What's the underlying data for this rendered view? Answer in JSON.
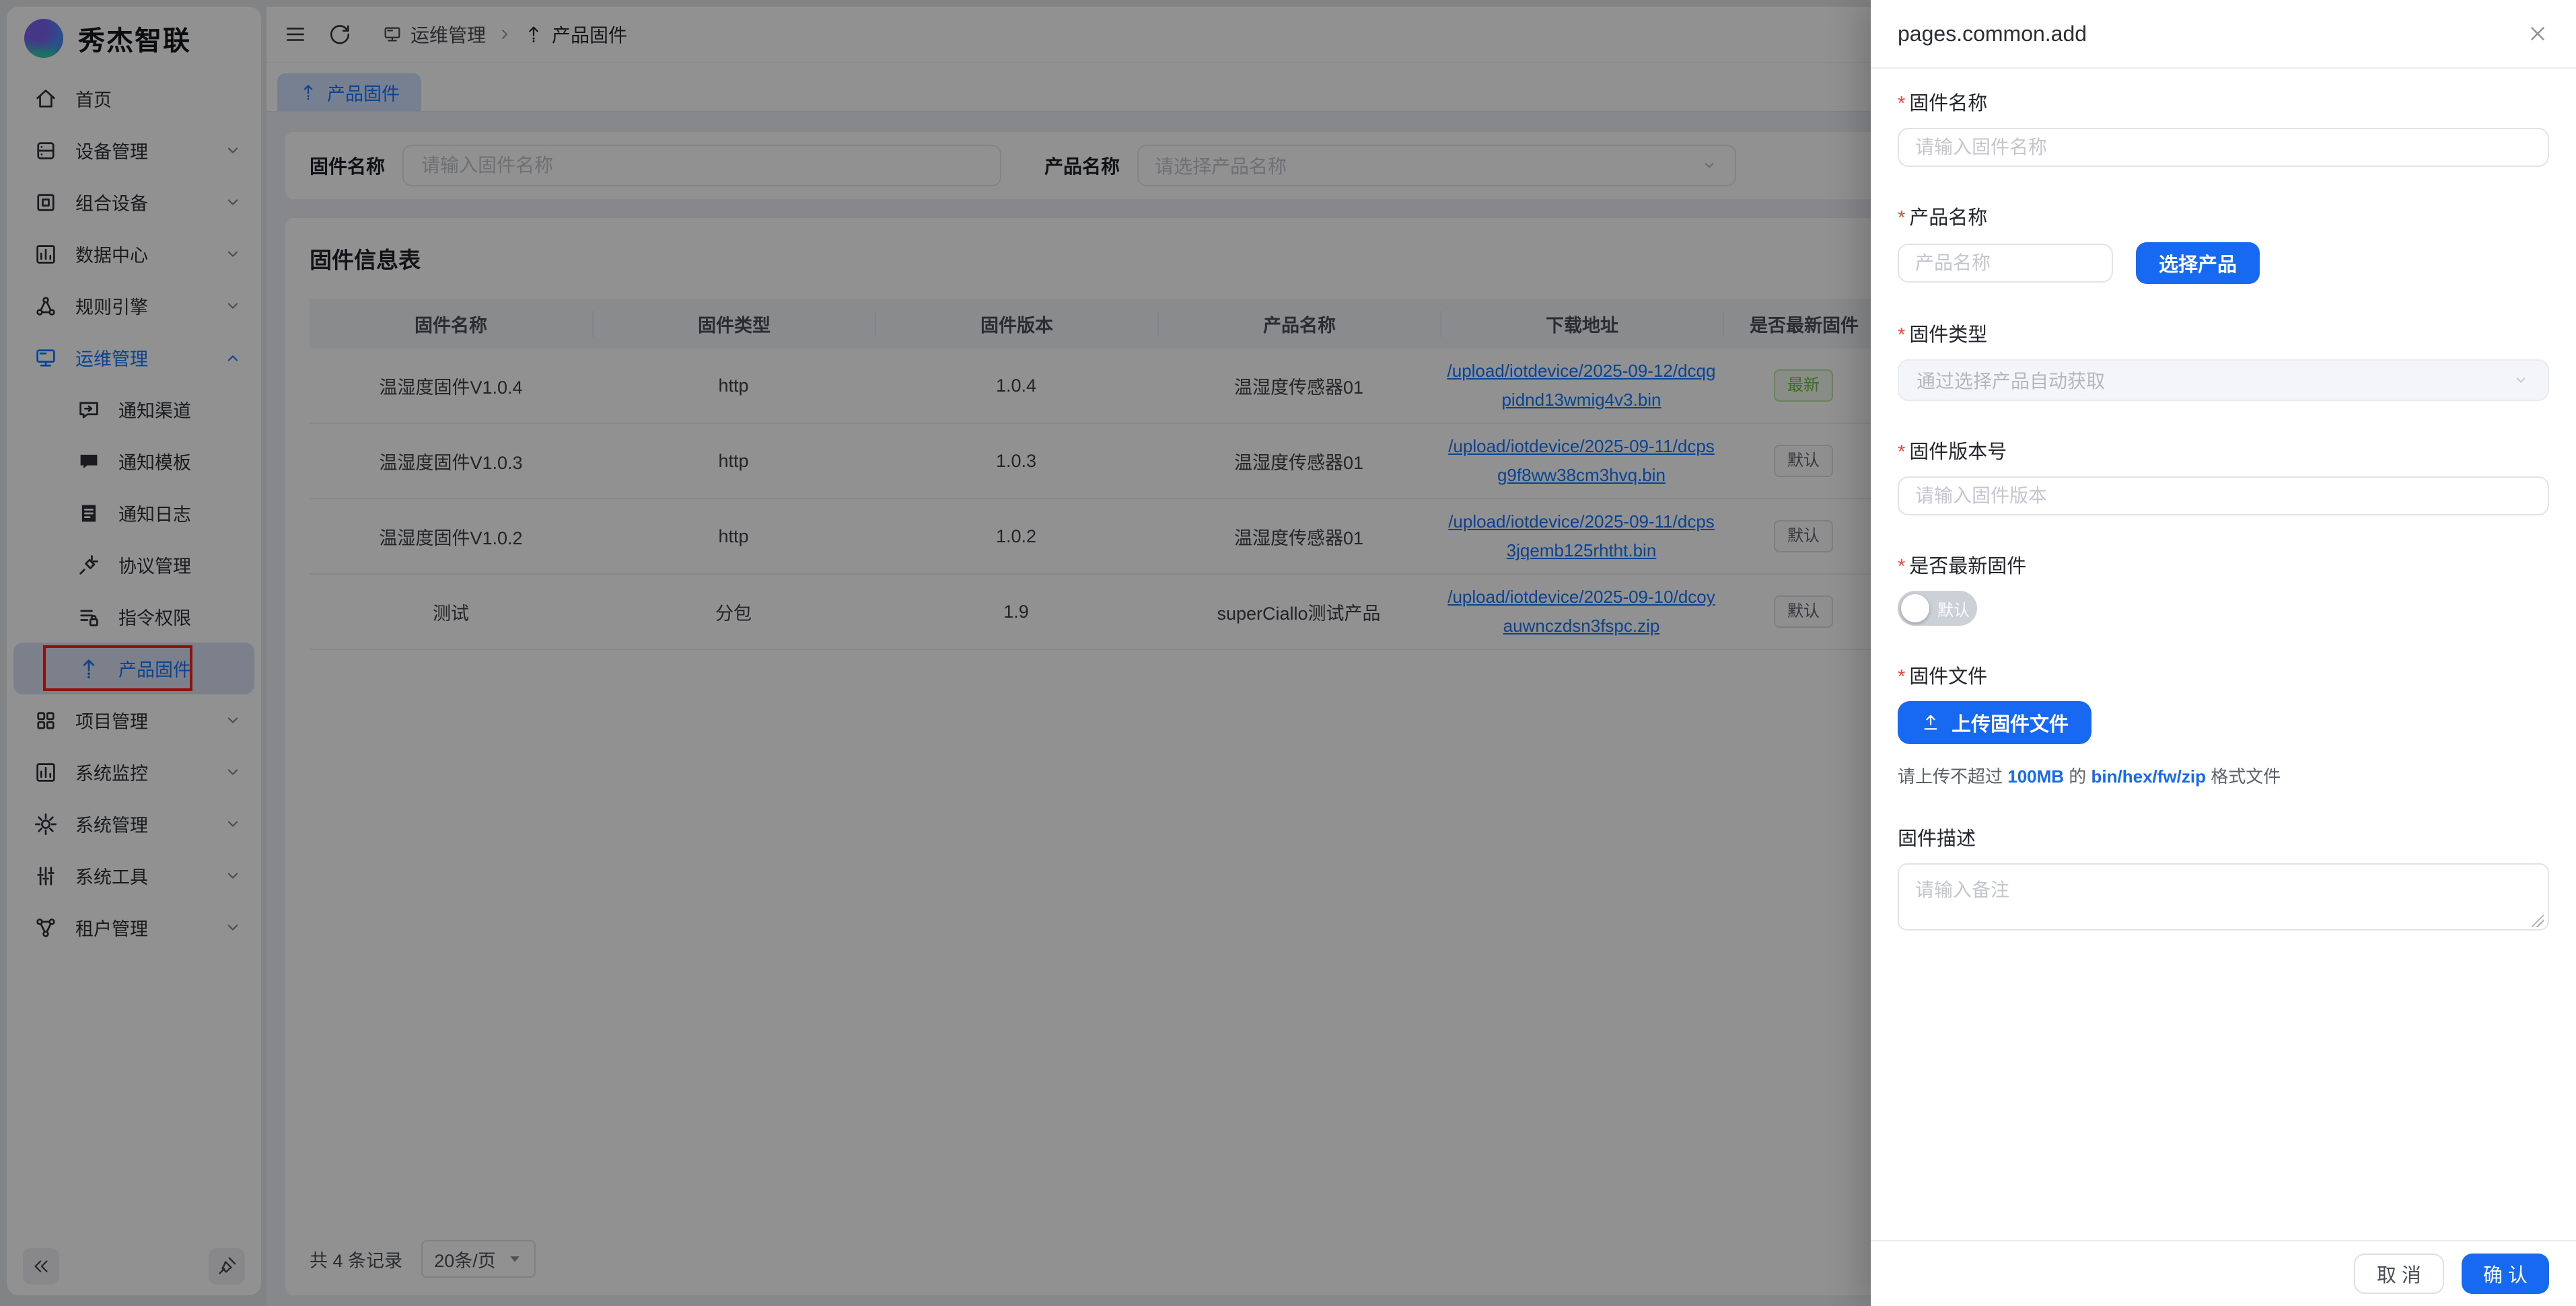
{
  "brand": {
    "name": "秀杰智联",
    "logo_icon": "brand-logo-icon"
  },
  "sidebar": {
    "menu": [
      {
        "key": "home",
        "label": "首页",
        "icon": "home-icon",
        "level": 1
      },
      {
        "key": "device-management",
        "label": "设备管理",
        "icon": "device-icon",
        "level": 1,
        "chevron": "down"
      },
      {
        "key": "composite-device",
        "label": "组合设备",
        "icon": "combo-icon",
        "level": 1,
        "chevron": "down"
      },
      {
        "key": "data-center",
        "label": "数据中心",
        "icon": "bar-chart-icon",
        "level": 1,
        "chevron": "down"
      },
      {
        "key": "rule-engine",
        "label": "规则引擎",
        "icon": "nodes-icon",
        "level": 1,
        "chevron": "down"
      },
      {
        "key": "ops-management",
        "label": "运维管理",
        "icon": "monitor-icon",
        "level": 1,
        "chevron": "up",
        "expanded": true
      },
      {
        "key": "notify-channel",
        "label": "通知渠道",
        "icon": "message-arrow-icon",
        "level": 2
      },
      {
        "key": "notify-template",
        "label": "通知模板",
        "icon": "message-icon",
        "level": 2
      },
      {
        "key": "notify-log",
        "label": "通知日志",
        "icon": "document-icon",
        "level": 2
      },
      {
        "key": "protocol-management",
        "label": "协议管理",
        "icon": "plug-icon",
        "level": 2
      },
      {
        "key": "command-permission",
        "label": "指令权限",
        "icon": "list-lock-icon",
        "level": 2
      },
      {
        "key": "product-firmware",
        "label": "产品固件",
        "icon": "upload-icon",
        "level": 2,
        "active": true,
        "annotated": true
      },
      {
        "key": "project-management",
        "label": "项目管理",
        "icon": "grid-icon",
        "level": 1,
        "chevron": "down"
      },
      {
        "key": "system-monitor",
        "label": "系统监控",
        "icon": "bar-chart-icon",
        "level": 1,
        "chevron": "down"
      },
      {
        "key": "system-management",
        "label": "系统管理",
        "icon": "gear-icon",
        "level": 1,
        "chevron": "down"
      },
      {
        "key": "system-tools",
        "label": "系统工具",
        "icon": "sliders-icon",
        "level": 1,
        "chevron": "down"
      },
      {
        "key": "tenant-management",
        "label": "租户管理",
        "icon": "org-icon",
        "level": 1,
        "chevron": "down"
      }
    ],
    "footer": {
      "collapse_icon": "collapse-icon",
      "pin_icon": "pin-icon"
    }
  },
  "topbar": {
    "menu_icon": "hamburger-icon",
    "refresh_icon": "refresh-icon",
    "breadcrumb": [
      {
        "label": "运维管理",
        "icon": "monitor-icon"
      },
      {
        "label": "产品固件",
        "icon": "upload-icon"
      }
    ]
  },
  "tabs": [
    {
      "label": "产品固件",
      "icon": "upload-icon",
      "active": true
    }
  ],
  "filters": {
    "firmware_name": {
      "label": "固件名称",
      "placeholder": "请输入固件名称"
    },
    "product_name": {
      "label": "产品名称",
      "placeholder": "请选择产品名称"
    }
  },
  "table": {
    "title": "固件信息表",
    "columns": [
      "固件名称",
      "固件类型",
      "固件版本",
      "产品名称",
      "下载地址",
      "是否最新固件"
    ],
    "rows": [
      {
        "name": "温湿度固件V1.0.4",
        "type": "http",
        "version": "1.0.4",
        "product": "温湿度传感器01",
        "download_url": "/upload/iotdevice/2025-09-12/dcqgpidnd13wmig4v3.bin",
        "latest_badge": "最新",
        "badge_style": "green"
      },
      {
        "name": "温湿度固件V1.0.3",
        "type": "http",
        "version": "1.0.3",
        "product": "温湿度传感器01",
        "download_url": "/upload/iotdevice/2025-09-11/dcpsg9f8ww38cm3hvq.bin",
        "latest_badge": "默认",
        "badge_style": "gray"
      },
      {
        "name": "温湿度固件V1.0.2",
        "type": "http",
        "version": "1.0.2",
        "product": "温湿度传感器01",
        "download_url": "/upload/iotdevice/2025-09-11/dcps3jqemb125rhtht.bin",
        "latest_badge": "默认",
        "badge_style": "gray"
      },
      {
        "name": "测试",
        "type": "分包",
        "version": "1.9",
        "product": "superCiallo测试产品",
        "download_url": "/upload/iotdevice/2025-09-10/dcoyauwnczdsn3fspc.zip",
        "latest_badge": "默认",
        "badge_style": "gray"
      }
    ],
    "pagination": {
      "total_text": "共 4 条记录",
      "page_size": "20条/页"
    }
  },
  "drawer": {
    "title": "pages.common.add",
    "firmware_name": {
      "label": "固件名称",
      "placeholder": "请输入固件名称",
      "required": true
    },
    "product_name": {
      "label": "产品名称",
      "placeholder": "产品名称",
      "button_label": "选择产品",
      "required": true
    },
    "firmware_type": {
      "label": "固件类型",
      "placeholder": "通过选择产品自动获取",
      "required": true,
      "disabled": true
    },
    "firmware_version": {
      "label": "固件版本号",
      "placeholder": "请输入固件版本",
      "required": true
    },
    "is_latest": {
      "label": "是否最新固件",
      "toggle_text": "默认",
      "state": "off",
      "required": true
    },
    "firmware_file": {
      "label": "固件文件",
      "button_label": "上传固件文件",
      "hint_prefix": "请上传不超过 ",
      "hint_size": "100MB",
      "hint_mid": " 的 ",
      "hint_formats": "bin/hex/fw/zip",
      "hint_suffix": " 格式文件",
      "required": true
    },
    "description": {
      "label": "固件描述",
      "placeholder": "请输入备注"
    },
    "cancel_label": "取 消",
    "confirm_label": "确 认"
  },
  "annotation": {
    "type": "red-highlight-box",
    "target": "产品固件",
    "color": "#ff1f1f"
  },
  "colors": {
    "primary": "#1669f0",
    "link": "#1677ff",
    "badge_green": "#67c23a",
    "overlay": "rgba(0,0,0,0.43)",
    "active_menu_bg": "#d8e1f2"
  }
}
